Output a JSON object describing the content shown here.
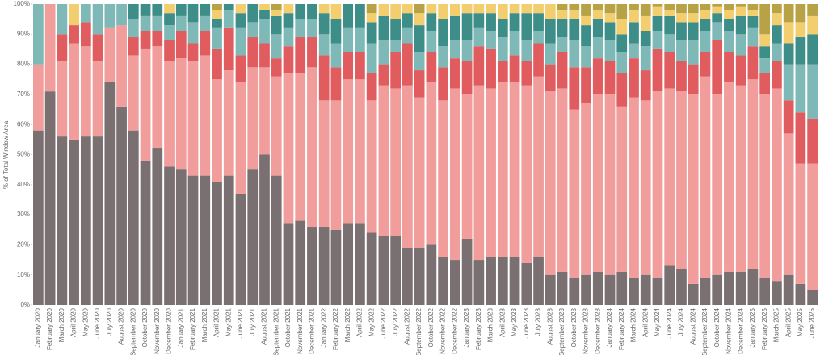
{
  "chart_data": {
    "type": "stacked_bar",
    "y_label": "% of Total Window Area",
    "categories": [
      "January 2020",
      "February 2020",
      "March 2020",
      "April 2020",
      "May 2020",
      "June 2020",
      "July 2020",
      "August 2020",
      "September 2020",
      "October 2020",
      "November 2020",
      "December 2020",
      "January 2021",
      "February 2021",
      "March 2021",
      "April 2021",
      "May 2021",
      "June 2021",
      "July 2021",
      "August 2021",
      "September 2021",
      "October 2021",
      "November 2021",
      "December 2021",
      "January 2022",
      "February 2022",
      "March 2022",
      "April 2022",
      "May 2022",
      "June 2022",
      "July 2022",
      "August 2022",
      "September 2022",
      "October 2022",
      "November 2022",
      "December 2022",
      "January 2023",
      "February 2023",
      "March 2023",
      "April 2023",
      "May 2023",
      "June 2023",
      "July 2023",
      "August 2023",
      "September 2023",
      "October 2023",
      "November 2023",
      "December 2023",
      "January 2024",
      "February 2024",
      "March 2024",
      "April 2024",
      "May 2024",
      "June 2024",
      "July 2024",
      "August 2024",
      "September 2024",
      "October 2024",
      "November 2024",
      "December 2024",
      "January 2025",
      "February 2025",
      "March 2025",
      "April 2025",
      "May 2025",
      "June 2025"
    ],
    "series": [
      {
        "color": "#7a7072",
        "values": [
          58,
          71,
          56,
          55,
          56,
          56,
          74,
          66,
          58,
          48,
          52,
          46,
          45,
          43,
          43,
          41,
          43,
          37,
          45,
          50,
          43,
          27,
          28,
          26,
          26,
          25,
          27,
          27,
          24,
          23,
          23,
          19,
          19,
          20,
          16,
          15,
          22,
          15,
          16,
          16,
          16,
          14,
          16,
          10,
          11,
          9,
          10,
          11,
          10,
          11,
          9,
          10,
          9,
          13,
          12,
          7,
          9,
          10,
          11,
          11,
          12,
          9,
          8,
          10,
          7,
          5
        ]
      },
      {
        "color": "#f19d9b",
        "values": [
          22,
          29,
          25,
          32,
          30,
          25,
          18,
          27,
          25,
          37,
          34,
          35,
          37,
          38,
          40,
          34,
          35,
          37,
          34,
          29,
          33,
          50,
          49,
          53,
          42,
          43,
          48,
          48,
          44,
          50,
          49,
          54,
          50,
          54,
          52,
          57,
          48,
          58,
          56,
          58,
          58,
          59,
          60,
          61,
          61,
          56,
          57,
          59,
          60,
          55,
          60,
          58,
          62,
          59,
          59,
          63,
          67,
          60,
          63,
          62,
          63,
          61,
          64,
          47,
          40,
          42
        ]
      },
      {
        "color": "#e05c5f",
        "values": [
          0,
          0,
          9,
          6,
          8,
          9,
          0,
          0,
          6,
          6,
          5,
          7,
          9,
          6,
          8,
          10,
          14,
          9,
          10,
          8,
          6,
          9,
          12,
          10,
          15,
          11,
          9,
          9,
          9,
          7,
          12,
          14,
          9,
          10,
          11,
          10,
          11,
          13,
          13,
          7,
          9,
          8,
          11,
          9,
          12,
          14,
          12,
          12,
          11,
          11,
          13,
          10,
          14,
          12,
          10,
          10,
          8,
          18,
          10,
          10,
          11,
          7,
          9,
          11,
          17,
          15
        ]
      },
      {
        "color": "#7fb9b7",
        "values": [
          20,
          0,
          10,
          0,
          6,
          10,
          8,
          7,
          6,
          5,
          5,
          5,
          5,
          7,
          5,
          7,
          6,
          9,
          5,
          8,
          8,
          6,
          6,
          6,
          7,
          8,
          8,
          8,
          10,
          8,
          4,
          5,
          6,
          7,
          7,
          6,
          7,
          6,
          6,
          8,
          8,
          7,
          4,
          7,
          5,
          9,
          7,
          7,
          7,
          7,
          5,
          8,
          6,
          6,
          7,
          8,
          7,
          6,
          7,
          7,
          6,
          5,
          6,
          12,
          16,
          18
        ]
      },
      {
        "color": "#3d8e89",
        "values": [
          0,
          0,
          0,
          0,
          0,
          0,
          0,
          0,
          5,
          4,
          4,
          4,
          4,
          6,
          4,
          3,
          2,
          5,
          6,
          3,
          6,
          5,
          5,
          5,
          7,
          8,
          8,
          8,
          7,
          8,
          7,
          5,
          9,
          6,
          9,
          8,
          9,
          5,
          6,
          6,
          6,
          9,
          6,
          8,
          6,
          7,
          7,
          6,
          6,
          6,
          7,
          5,
          5,
          6,
          6,
          6,
          4,
          3,
          4,
          6,
          4,
          4,
          6,
          7,
          9,
          10
        ]
      },
      {
        "color": "#f2ce6f",
        "values": [
          0,
          0,
          0,
          7,
          0,
          0,
          0,
          0,
          0,
          0,
          0,
          3,
          0,
          0,
          0,
          3,
          0,
          3,
          0,
          2,
          2,
          3,
          0,
          0,
          3,
          5,
          0,
          0,
          3,
          4,
          5,
          3,
          4,
          3,
          5,
          4,
          3,
          3,
          3,
          5,
          3,
          3,
          3,
          5,
          3,
          3,
          3,
          3,
          3,
          5,
          4,
          5,
          3,
          2,
          3,
          3,
          3,
          2,
          3,
          3,
          2,
          4,
          4,
          7,
          5,
          6
        ]
      },
      {
        "color": "#b7a245",
        "values": [
          0,
          0,
          0,
          0,
          0,
          0,
          0,
          0,
          0,
          0,
          0,
          0,
          0,
          0,
          0,
          2,
          0,
          0,
          0,
          0,
          2,
          0,
          0,
          0,
          0,
          0,
          0,
          0,
          3,
          0,
          0,
          0,
          3,
          0,
          0,
          0,
          0,
          0,
          0,
          0,
          0,
          0,
          0,
          0,
          2,
          2,
          4,
          2,
          3,
          5,
          2,
          4,
          1,
          2,
          3,
          3,
          2,
          1,
          2,
          1,
          2,
          10,
          3,
          6,
          6,
          4
        ]
      }
    ],
    "ylim": [
      0,
      100
    ],
    "yticks": [
      {
        "value": 0,
        "label": "0%"
      },
      {
        "value": 10,
        "label": "10%"
      },
      {
        "value": 20,
        "label": "20%"
      },
      {
        "value": 30,
        "label": "30%"
      },
      {
        "value": 40,
        "label": "40%"
      },
      {
        "value": 50,
        "label": "50%"
      },
      {
        "value": 60,
        "label": "60%"
      },
      {
        "value": 70,
        "label": "70%"
      },
      {
        "value": 80,
        "label": "80%"
      },
      {
        "value": 90,
        "label": "90%"
      },
      {
        "value": 100,
        "label": "100%"
      }
    ]
  }
}
